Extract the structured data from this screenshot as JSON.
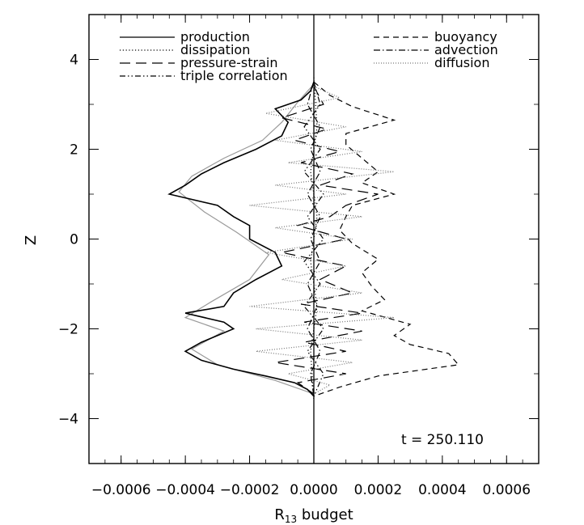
{
  "chart_data": {
    "type": "line",
    "title": "",
    "xlabel": "R",
    "xlabel_sub": "13",
    "xlabel_suffix": " budget",
    "ylabel": "Z",
    "xlim": [
      -0.0007,
      0.0007
    ],
    "ylim": [
      -5,
      5
    ],
    "x_ticks": [
      -0.0006,
      -0.0004,
      -0.0002,
      0.0,
      0.0002,
      0.0004,
      0.0006
    ],
    "x_tick_labels": [
      "−0.0006",
      "−0.0004",
      "−0.0002",
      "0.0000",
      "0.0002",
      "0.0004",
      "0.0006"
    ],
    "y_ticks": [
      -4,
      -2,
      0,
      2,
      4
    ],
    "y_tick_labels": [
      "−4",
      "−2",
      "0",
      "2",
      "4"
    ],
    "grid": false,
    "legend_placement": "top",
    "annotation": "t = 250.110",
    "series": [
      {
        "name": "production",
        "dash": "solid",
        "points": [
          [
            0,
            3.5
          ],
          [
            -1e-05,
            3.3
          ],
          [
            -4e-05,
            3.1
          ],
          [
            -8e-05,
            3.0
          ],
          [
            -0.00012,
            2.9
          ],
          [
            -8e-05,
            2.6
          ],
          [
            -0.0001,
            2.3
          ],
          [
            -0.00018,
            2.0
          ],
          [
            -0.00028,
            1.7
          ],
          [
            -0.00035,
            1.45
          ],
          [
            -0.0004,
            1.2
          ],
          [
            -0.00045,
            1.0
          ],
          [
            -0.0003,
            0.75
          ],
          [
            -0.00025,
            0.5
          ],
          [
            -0.0002,
            0.3
          ],
          [
            -0.0002,
            0.0
          ],
          [
            -0.00012,
            -0.3
          ],
          [
            -0.0001,
            -0.6
          ],
          [
            -0.00018,
            -0.9
          ],
          [
            -0.00025,
            -1.2
          ],
          [
            -0.00028,
            -1.5
          ],
          [
            -0.0004,
            -1.65
          ],
          [
            -0.00028,
            -1.85
          ],
          [
            -0.00025,
            -2.0
          ],
          [
            -0.00035,
            -2.3
          ],
          [
            -0.0004,
            -2.5
          ],
          [
            -0.00035,
            -2.7
          ],
          [
            -0.00025,
            -2.9
          ],
          [
            -0.00015,
            -3.05
          ],
          [
            -6e-05,
            -3.2
          ],
          [
            -2e-05,
            -3.35
          ],
          [
            0,
            -3.5
          ]
        ]
      },
      {
        "name": "dissipation",
        "dash": "dotted",
        "points": [
          [
            0,
            3.6
          ],
          [
            1e-05,
            2.5
          ],
          [
            -1e-05,
            1.5
          ],
          [
            1e-05,
            0.5
          ],
          [
            -1e-05,
            -0.5
          ],
          [
            1e-05,
            -1.5
          ],
          [
            -1e-05,
            -2.5
          ],
          [
            0,
            -3.6
          ]
        ]
      },
      {
        "name": "pressure-strain",
        "dash": "longdash",
        "points": [
          [
            0,
            3.4
          ],
          [
            3e-05,
            3.0
          ],
          [
            -0.0001,
            2.7
          ],
          [
            4e-05,
            2.45
          ],
          [
            -6e-05,
            2.2
          ],
          [
            8e-05,
            1.95
          ],
          [
            -4e-05,
            1.7
          ],
          [
            0.00012,
            1.45
          ],
          [
            2e-05,
            1.2
          ],
          [
            0.0002,
            1.0
          ],
          [
            0.0001,
            0.75
          ],
          [
            5e-05,
            0.5
          ],
          [
            -5e-05,
            0.3
          ],
          [
            0.0001,
            0.0
          ],
          [
            -0.0001,
            -0.3
          ],
          [
            0.0001,
            -0.6
          ],
          [
            2e-05,
            -0.9
          ],
          [
            0.00012,
            -1.2
          ],
          [
            -4e-05,
            -1.45
          ],
          [
            0.00015,
            -1.65
          ],
          [
            -3e-05,
            -1.85
          ],
          [
            0.00015,
            -2.05
          ],
          [
            -3e-05,
            -2.3
          ],
          [
            0.0001,
            -2.5
          ],
          [
            -0.00012,
            -2.75
          ],
          [
            0.0001,
            -3.0
          ],
          [
            -5e-05,
            -3.2
          ],
          [
            0,
            -3.45
          ]
        ]
      },
      {
        "name": "triple correlation",
        "dash": "dashdotdot",
        "points": [
          [
            0,
            3.5
          ],
          [
            2e-05,
            3.0
          ],
          [
            -3e-05,
            2.5
          ],
          [
            2e-05,
            2.0
          ],
          [
            -3e-05,
            1.5
          ],
          [
            3e-05,
            1.0
          ],
          [
            -2e-05,
            0.5
          ],
          [
            3e-05,
            0.0
          ],
          [
            -3e-05,
            -0.5
          ],
          [
            2e-05,
            -1.0
          ],
          [
            -3e-05,
            -1.5
          ],
          [
            3e-05,
            -2.0
          ],
          [
            -2e-05,
            -2.5
          ],
          [
            3e-05,
            -3.0
          ],
          [
            0,
            -3.5
          ]
        ]
      },
      {
        "name": "buoyancy",
        "dash": "dashed",
        "points": [
          [
            0,
            3.5
          ],
          [
            5e-05,
            3.2
          ],
          [
            0.00012,
            2.95
          ],
          [
            0.00025,
            2.65
          ],
          [
            0.0001,
            2.35
          ],
          [
            0.0001,
            2.1
          ],
          [
            0.00015,
            1.8
          ],
          [
            0.0002,
            1.5
          ],
          [
            0.00015,
            1.25
          ],
          [
            0.00025,
            1.0
          ],
          [
            0.00012,
            0.75
          ],
          [
            0.0001,
            0.5
          ],
          [
            8e-05,
            0.2
          ],
          [
            0.00012,
            -0.1
          ],
          [
            0.0002,
            -0.45
          ],
          [
            0.00015,
            -0.75
          ],
          [
            0.00018,
            -1.05
          ],
          [
            0.00022,
            -1.35
          ],
          [
            0.00015,
            -1.6
          ],
          [
            0.0003,
            -1.9
          ],
          [
            0.00025,
            -2.15
          ],
          [
            0.0003,
            -2.35
          ],
          [
            0.00042,
            -2.55
          ],
          [
            0.00045,
            -2.8
          ],
          [
            0.0002,
            -3.05
          ],
          [
            8e-05,
            -3.3
          ],
          [
            0,
            -3.5
          ]
        ]
      },
      {
        "name": "advection",
        "dash": "dashdot",
        "points": [
          [
            0,
            3.5
          ],
          [
            -2e-05,
            3.0
          ],
          [
            2e-05,
            2.5
          ],
          [
            -1e-05,
            2.0
          ],
          [
            2e-05,
            1.5
          ],
          [
            -2e-05,
            1.0
          ],
          [
            2e-05,
            0.5
          ],
          [
            -1e-05,
            0.0
          ],
          [
            2e-05,
            -0.5
          ],
          [
            -2e-05,
            -1.0
          ],
          [
            1e-05,
            -1.5
          ],
          [
            -2e-05,
            -2.0
          ],
          [
            2e-05,
            -2.5
          ],
          [
            -1e-05,
            -3.0
          ],
          [
            0,
            -3.5
          ]
        ]
      },
      {
        "name": "diffusion",
        "dash": "finedot",
        "color": "#777777",
        "points": [
          [
            0,
            3.4
          ],
          [
            8e-05,
            3.15
          ],
          [
            -0.00015,
            2.8
          ],
          [
            0.0001,
            2.5
          ],
          [
            -0.00012,
            2.2
          ],
          [
            0.00015,
            1.95
          ],
          [
            -8e-05,
            1.7
          ],
          [
            0.00025,
            1.5
          ],
          [
            -0.00012,
            1.2
          ],
          [
            0.0001,
            1.0
          ],
          [
            -0.0002,
            0.75
          ],
          [
            0.00015,
            0.5
          ],
          [
            -0.00012,
            0.25
          ],
          [
            0.00012,
            0.0
          ],
          [
            -0.00015,
            -0.3
          ],
          [
            0.0001,
            -0.6
          ],
          [
            -0.0001,
            -0.9
          ],
          [
            0.00015,
            -1.2
          ],
          [
            -0.0002,
            -1.5
          ],
          [
            0.00025,
            -1.75
          ],
          [
            -0.00018,
            -2.0
          ],
          [
            0.00015,
            -2.25
          ],
          [
            -0.00018,
            -2.5
          ],
          [
            0.00012,
            -2.75
          ],
          [
            -8e-05,
            -3.0
          ],
          [
            5e-05,
            -3.25
          ],
          [
            0,
            -3.45
          ]
        ]
      },
      {
        "name": "",
        "dash": "solid",
        "color": "#999999",
        "role": "shadow",
        "points": [
          [
            0,
            3.45
          ],
          [
            -5e-05,
            3.05
          ],
          [
            -0.0001,
            2.6
          ],
          [
            -0.00016,
            2.2
          ],
          [
            -0.00028,
            1.8
          ],
          [
            -0.00038,
            1.4
          ],
          [
            -0.00042,
            1.05
          ],
          [
            -0.00034,
            0.6
          ],
          [
            -0.00024,
            0.15
          ],
          [
            -0.00014,
            -0.35
          ],
          [
            -0.0002,
            -0.9
          ],
          [
            -0.00032,
            -1.4
          ],
          [
            -0.0004,
            -1.75
          ],
          [
            -0.00028,
            -2.05
          ],
          [
            -0.00038,
            -2.45
          ],
          [
            -0.0003,
            -2.8
          ],
          [
            -0.00012,
            -3.15
          ],
          [
            0,
            -3.45
          ]
        ]
      }
    ]
  },
  "legend": {
    "left": [
      "production",
      "dissipation",
      "pressure-strain",
      "triple correlation"
    ],
    "right": [
      "buoyancy",
      "advection",
      "diffusion"
    ]
  }
}
